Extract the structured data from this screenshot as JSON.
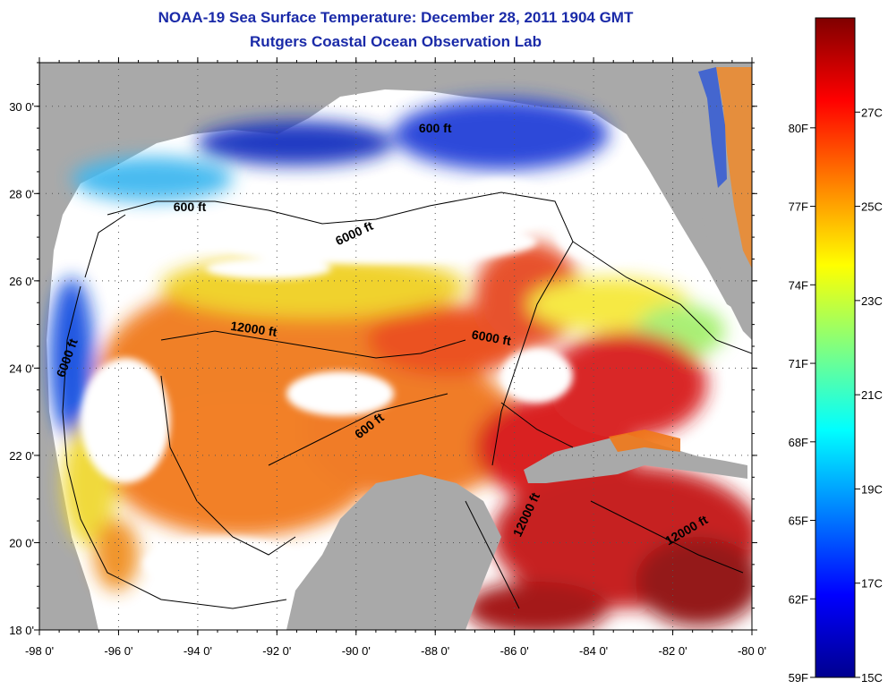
{
  "header": {
    "title": "NOAA-19 Sea Surface Temperature:  December 28, 2011 1904 GMT",
    "subtitle": "Rutgers Coastal Ocean Observation Lab"
  },
  "map": {
    "lon_range": [
      -98,
      -80
    ],
    "lat_range": [
      18,
      31
    ],
    "lon_ticks": [
      "-98 0'",
      "-96 0'",
      "-94 0'",
      "-92 0'",
      "-90 0'",
      "-88 0'",
      "-86 0'",
      "-84 0'",
      "-82 0'",
      "-80 0'"
    ],
    "lat_ticks": [
      "18 0'",
      "20 0'",
      "22 0'",
      "24 0'",
      "26 0'",
      "28 0'",
      "30 0'"
    ],
    "land_color": "#a9a9a9",
    "cloud_color": "#ffffff",
    "contour_labels": [
      "600 ft",
      "600 ft",
      "6000 ft",
      "12000 ft",
      "6000 ft",
      "6000 ft",
      "600 ft",
      "12000 ft",
      "12000 ft"
    ]
  },
  "colorbar": {
    "f_labels": [
      "80F",
      "77F",
      "74F",
      "71F",
      "68F",
      "65F",
      "62F",
      "59F"
    ],
    "c_labels": [
      "27C",
      "25C",
      "23C",
      "21C",
      "19C",
      "17C",
      "15C"
    ],
    "colors": [
      "#00008f",
      "#0000ff",
      "#0080ff",
      "#00ffff",
      "#80ff80",
      "#ffff00",
      "#ff8000",
      "#ff0000",
      "#800000"
    ]
  }
}
